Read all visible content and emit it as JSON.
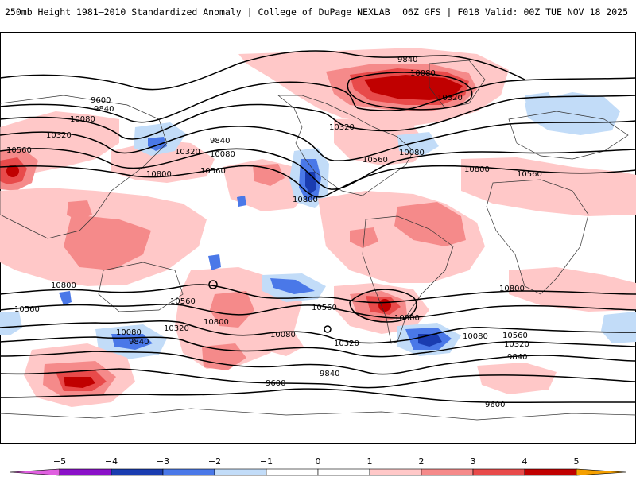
{
  "header": {
    "title_left": "250mb Height 1981–2010 Standardized Anomaly | College of DuPage NEXLAB",
    "title_right": "06Z GFS | F018 Valid: 00Z TUE NOV 18 2025"
  },
  "colors": {
    "neg5": "#e060e0",
    "neg4": "#8a10c8",
    "neg3": "#1a3cb0",
    "neg2": "#4a78e8",
    "neg1": "#c2dcf8",
    "zero": "#ffffff",
    "pos1": "#ffc8c8",
    "pos2": "#f58a8a",
    "pos3": "#e84a4a",
    "pos4": "#c00000",
    "pos5": "#f5a000",
    "contour": "#000000"
  },
  "legend": {
    "ticks": [
      "−5",
      "−4",
      "−3",
      "−2",
      "−1",
      "0",
      "1",
      "2",
      "3",
      "4",
      "5"
    ]
  },
  "contour_labels": [
    {
      "id": "9840-north",
      "text": "9840"
    },
    {
      "id": "10080-north",
      "text": "10080"
    },
    {
      "id": "10320-north",
      "text": "10320"
    },
    {
      "id": "9600-west",
      "text": "9600"
    },
    {
      "id": "9840-west",
      "text": "9840"
    },
    {
      "id": "10080-west",
      "text": "10080"
    },
    {
      "id": "10320-west",
      "text": "10320"
    },
    {
      "id": "10560-west",
      "text": "10560"
    },
    {
      "id": "9840-pac",
      "text": "9840"
    },
    {
      "id": "10080-pac",
      "text": "10080"
    },
    {
      "id": "10320-pac",
      "text": "10320"
    },
    {
      "id": "10560-pac",
      "text": "10560"
    },
    {
      "id": "10800-pac",
      "text": "10800"
    },
    {
      "id": "10320-na",
      "text": "10320"
    },
    {
      "id": "10080-atl",
      "text": "10080"
    },
    {
      "id": "10560-na",
      "text": "10560"
    },
    {
      "id": "10800-na",
      "text": "10800"
    },
    {
      "id": "10800-atl",
      "text": "10800"
    },
    {
      "id": "10560-eu",
      "text": "10560"
    },
    {
      "id": "10800-s-w",
      "text": "10800"
    },
    {
      "id": "10560-s-w",
      "text": "10560"
    },
    {
      "id": "10560-s-pac",
      "text": "10560"
    },
    {
      "id": "10800-s-pac",
      "text": "10800"
    },
    {
      "id": "10080-s-w",
      "text": "10080"
    },
    {
      "id": "9840-s-w",
      "text": "9840"
    },
    {
      "id": "10320-s-w",
      "text": "10320"
    },
    {
      "id": "10560-s-mid",
      "text": "10560"
    },
    {
      "id": "10080-s-mid",
      "text": "10080"
    },
    {
      "id": "10800-s-sa",
      "text": "10800"
    },
    {
      "id": "10320-s-mid",
      "text": "10320"
    },
    {
      "id": "9840-s-mid",
      "text": "9840"
    },
    {
      "id": "9600-s-mid",
      "text": "9600"
    },
    {
      "id": "10800-s-ind",
      "text": "10800"
    },
    {
      "id": "10080-s-ind",
      "text": "10080"
    },
    {
      "id": "10560-s-ind",
      "text": "10560"
    },
    {
      "id": "10320-s-ind",
      "text": "10320"
    },
    {
      "id": "9840-s-ind",
      "text": "9840"
    },
    {
      "id": "9600-s-ind",
      "text": "9600"
    }
  ]
}
